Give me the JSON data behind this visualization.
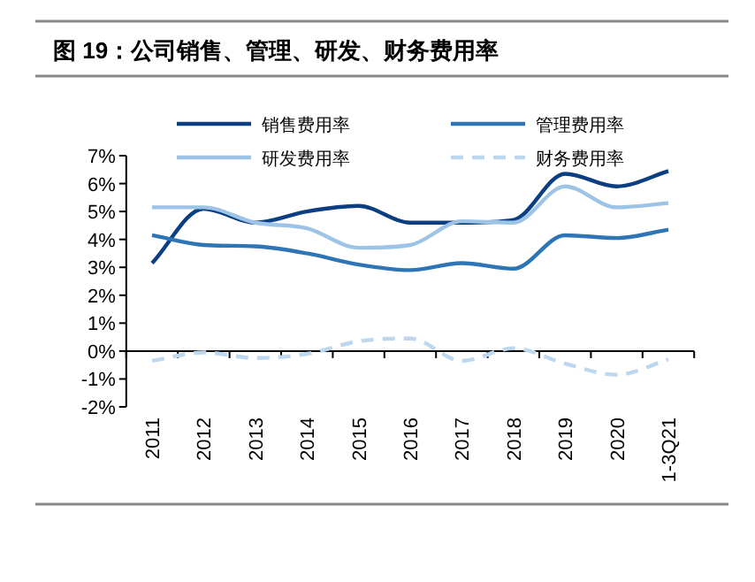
{
  "chart_data": {
    "type": "line",
    "title": "图 19：公司销售、管理、研发、财务费用率",
    "categories": [
      "2011",
      "2012",
      "2013",
      "2014",
      "2015",
      "2016",
      "2017",
      "2018",
      "2019",
      "2020",
      "1-3Q21"
    ],
    "series": [
      {
        "name": "销售费用率",
        "color": "#0b3f82",
        "values": [
          3.15,
          5.1,
          4.6,
          5.0,
          5.2,
          4.6,
          4.6,
          4.7,
          6.35,
          5.9,
          6.45
        ]
      },
      {
        "name": "管理费用率",
        "color": "#2e75b6",
        "values": [
          4.15,
          3.8,
          3.75,
          3.5,
          3.1,
          2.9,
          3.15,
          2.95,
          4.15,
          4.05,
          4.35
        ]
      },
      {
        "name": "研发费用率",
        "color": "#9dc3e6",
        "values": [
          5.15,
          5.15,
          4.6,
          4.4,
          3.7,
          3.8,
          4.65,
          4.6,
          5.9,
          5.15,
          5.3
        ]
      },
      {
        "name": "财务费用率",
        "color": "#bdd7ee",
        "line_style": "dashed",
        "values": [
          -0.35,
          -0.05,
          -0.25,
          -0.1,
          0.35,
          0.45,
          -0.35,
          0.1,
          -0.45,
          -0.85,
          -0.3
        ]
      }
    ],
    "ylim": [
      -2,
      7
    ],
    "yticks": [
      {
        "value": -2,
        "label": "-2%"
      },
      {
        "value": -1,
        "label": "-1%"
      },
      {
        "value": 0,
        "label": "0%"
      },
      {
        "value": 1,
        "label": "1%"
      },
      {
        "value": 2,
        "label": "2%"
      },
      {
        "value": 3,
        "label": "3%"
      },
      {
        "value": 4,
        "label": "4%"
      },
      {
        "value": 5,
        "label": "5%"
      },
      {
        "value": 6,
        "label": "6%"
      },
      {
        "value": 7,
        "label": "7%"
      }
    ],
    "legend": "top",
    "marker": "none"
  }
}
